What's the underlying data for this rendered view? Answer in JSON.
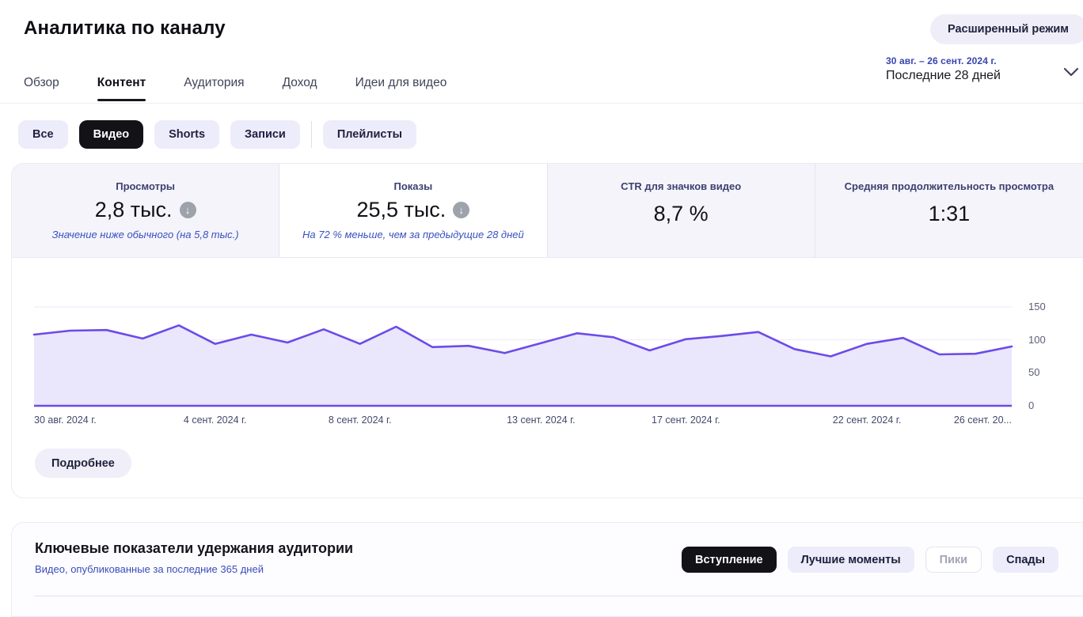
{
  "header": {
    "title": "Аналитика по каналу",
    "advanced_mode_button": "Расширенный режим",
    "date_range_small": "30 авг. – 26 сент. 2024 г.",
    "date_range_big": "Последние 28 дней"
  },
  "tabs": [
    {
      "label": "Обзор",
      "active": false
    },
    {
      "label": "Контент",
      "active": true
    },
    {
      "label": "Аудитория",
      "active": false
    },
    {
      "label": "Доход",
      "active": false
    },
    {
      "label": "Идеи для видео",
      "active": false
    }
  ],
  "filters": {
    "items": [
      {
        "label": "Все",
        "active": false
      },
      {
        "label": "Видео",
        "active": true
      },
      {
        "label": "Shorts",
        "active": false
      },
      {
        "label": "Записи",
        "active": false
      }
    ],
    "playlists_label": "Плейлисты"
  },
  "metrics": [
    {
      "label": "Просмотры",
      "value": "2,8 тыс.",
      "note": "Значение ниже обычного (на 5,8 тыс.)",
      "trend": "down",
      "selected": false
    },
    {
      "label": "Показы",
      "value": "25,5 тыс.",
      "note": "На 72 % меньше, чем за предыдущие 28 дней",
      "trend": "down",
      "selected": true
    },
    {
      "label": "CTR для значков видео",
      "value": "8,7 %",
      "selected": false
    },
    {
      "label": "Средняя продолжительность просмотра",
      "value": "1:31",
      "selected": false
    }
  ],
  "chart_data": {
    "type": "area",
    "values": [
      108,
      114,
      115,
      102,
      122,
      94,
      108,
      96,
      116,
      94,
      120,
      89,
      91,
      80,
      95,
      110,
      104,
      84,
      101,
      106,
      112,
      86,
      75,
      94,
      103,
      78,
      79,
      90
    ],
    "x_tick_labels": [
      "30 авг. 2024 г.",
      "4 сент. 2024 г.",
      "8 сент. 2024 г.",
      "13 сент. 2024 г.",
      "17 сент. 2024 г.",
      "22 сент. 2024 г.",
      "26 сент. 20..."
    ],
    "x_tick_indices": [
      0,
      5,
      9,
      14,
      18,
      23,
      27
    ],
    "y_ticks": [
      150,
      100,
      50,
      0
    ],
    "ylim": [
      0,
      150
    ],
    "title": "",
    "xlabel": "",
    "ylabel": "",
    "grid": true,
    "legend": "none",
    "line_color": "#6c4be8",
    "fill_color": "rgba(108,75,232,0.14)",
    "grid_color": "#ece9f8"
  },
  "details_button": "Подробнее",
  "retention": {
    "title": "Ключевые показатели удержания аудитории",
    "subtitle": "Видео, опубликованные за последние 365 дней",
    "buttons": [
      {
        "label": "Вступление",
        "active": true,
        "disabled": false
      },
      {
        "label": "Лучшие моменты",
        "active": false,
        "disabled": false
      },
      {
        "label": "Пики",
        "active": false,
        "disabled": true
      },
      {
        "label": "Спады",
        "active": false,
        "disabled": false
      }
    ]
  },
  "icons": {
    "down_arrow": "↓",
    "chevron_down": "⌄"
  },
  "colors": {
    "accent_purple": "#6c4be8",
    "chip_background": "#edecfa",
    "active_chip_background": "#121217",
    "annotation_blue": "#3a50bf",
    "label_navy": "#3c4170"
  }
}
